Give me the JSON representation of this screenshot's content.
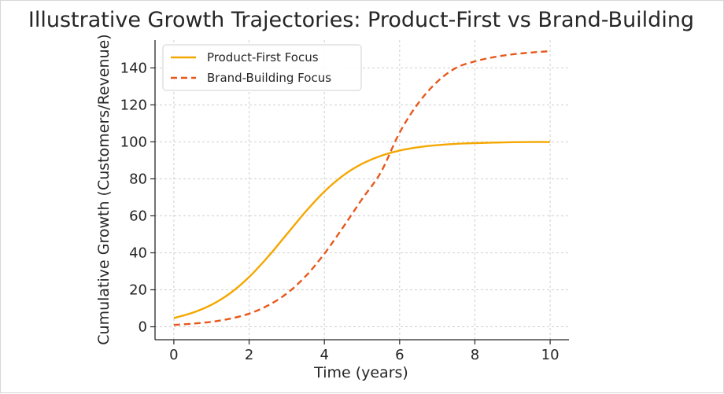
{
  "chart_data": {
    "type": "line",
    "title": "Illustrative Growth Trajectories: Product-First vs Brand-Building",
    "xlabel": "Time (years)",
    "ylabel": "Cumulative Growth (Customers/Revenue)",
    "xlim": [
      -0.5,
      10.5
    ],
    "ylim": [
      -7,
      155
    ],
    "xticks": [
      0,
      2,
      4,
      6,
      8,
      10
    ],
    "yticks": [
      0,
      20,
      40,
      60,
      80,
      100,
      120,
      140
    ],
    "grid": true,
    "legend_position": "top-left",
    "series": [
      {
        "name": "Product-First Focus",
        "color": "#f5a700",
        "style": "solid",
        "x": [
          0,
          0.5,
          1,
          1.5,
          2,
          2.5,
          3,
          3.5,
          4,
          4.5,
          5,
          5.5,
          6,
          6.5,
          7,
          7.5,
          8,
          8.5,
          9,
          9.5,
          10
        ],
        "y": [
          4.7,
          7.6,
          11.9,
          18.2,
          26.9,
          37.8,
          50.0,
          62.2,
          73.1,
          81.8,
          88.1,
          92.4,
          95.3,
          97.1,
          98.2,
          98.9,
          99.3,
          99.6,
          99.8,
          99.9,
          99.9
        ]
      },
      {
        "name": "Brand-Building Focus",
        "color": "#e8581c",
        "style": "dashed",
        "x": [
          0,
          0.5,
          1,
          1.5,
          2,
          2.5,
          3,
          3.5,
          4,
          4.5,
          5,
          5.5,
          6,
          6.5,
          7,
          7.5,
          8,
          8.5,
          9,
          9.5,
          10
        ],
        "y": [
          1.0,
          1.7,
          2.7,
          4.4,
          7.1,
          11.5,
          18.0,
          27.3,
          39.5,
          53.9,
          69.0,
          83.5,
          105.0,
          121.0,
          132.5,
          140.0,
          143.5,
          145.8,
          147.3,
          148.3,
          149.0
        ]
      }
    ]
  }
}
